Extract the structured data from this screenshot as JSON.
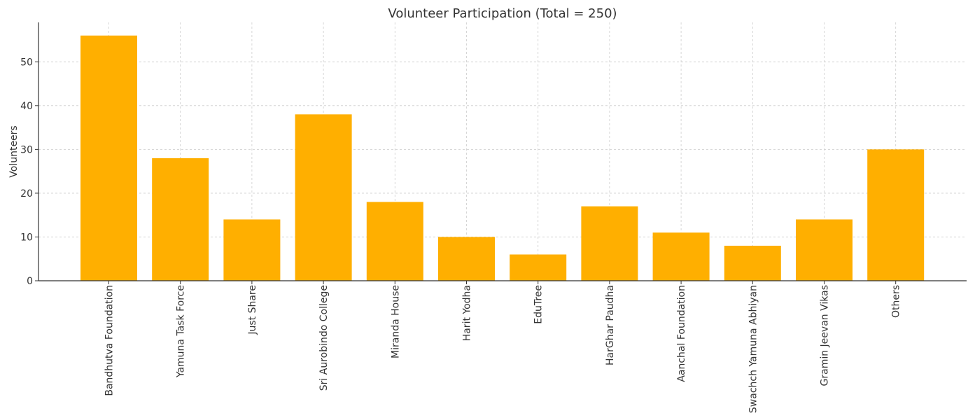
{
  "chart_data": {
    "type": "bar",
    "title": "Volunteer Participation (Total = 250)",
    "xlabel": "",
    "ylabel": "Volunteers",
    "categories": [
      "Bandhutva Foundation",
      "Yamuna Task Force",
      "Just Share",
      "Sri Aurobindo College",
      "Miranda House",
      "Harit Yodha",
      "EduTree",
      "HarGhar Paudha",
      "Aanchal Foundation",
      "Swachch Yamuna Abhiyan",
      "Gramin Jeevan Vikas",
      "Others"
    ],
    "values": [
      56,
      28,
      14,
      38,
      18,
      10,
      6,
      17,
      11,
      8,
      14,
      30
    ],
    "yticks": [
      0,
      10,
      20,
      30,
      40,
      50
    ],
    "ylim": [
      0,
      59
    ],
    "grid": true,
    "bar_color": "#FFAF00"
  }
}
